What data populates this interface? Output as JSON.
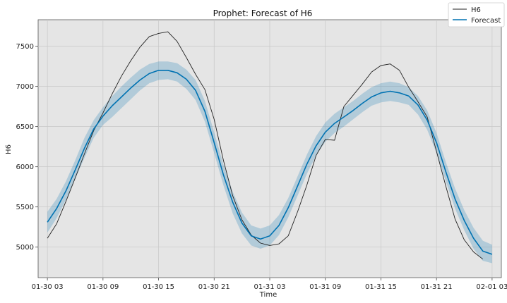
{
  "chart_data": {
    "type": "line",
    "title": "Prophet: Forecast of H6",
    "xlabel": "Time",
    "ylabel": "H6",
    "x_start": "2024-01-30 03:00",
    "x_step_hours": 1,
    "xlim": [
      "2024-01-30 02:00",
      "2024-02-01 04:00"
    ],
    "ylim": [
      4620,
      7830
    ],
    "x_ticks": [
      "01-30 03",
      "01-30 09",
      "01-30 15",
      "01-30 21",
      "01-31 03",
      "01-31 09",
      "01-31 15",
      "01-31 21",
      "02-01 03"
    ],
    "y_ticks": [
      5000,
      5500,
      6000,
      6500,
      7000,
      7500
    ],
    "grid": true,
    "legend_position": "top-right",
    "series": [
      {
        "name": "H6",
        "color": "#222222",
        "values": [
          5110,
          5290,
          5570,
          5860,
          6160,
          6450,
          6670,
          6910,
          7130,
          7320,
          7490,
          7620,
          7660,
          7680,
          7560,
          7360,
          7150,
          6960,
          6590,
          6080,
          5640,
          5340,
          5150,
          5050,
          5020,
          5040,
          5140,
          5440,
          5770,
          6140,
          6340,
          6330,
          6750,
          6890,
          7030,
          7180,
          7260,
          7280,
          7200,
          6990,
          6810,
          6620,
          6190,
          5760,
          5350,
          5090,
          4940,
          4850
        ]
      },
      {
        "name": "Forecast",
        "color": "#0072B2",
        "values": [
          5310,
          5480,
          5700,
          5960,
          6230,
          6470,
          6630,
          6760,
          6870,
          6980,
          7080,
          7160,
          7200,
          7200,
          7170,
          7090,
          6950,
          6690,
          6300,
          5900,
          5560,
          5300,
          5140,
          5100,
          5140,
          5270,
          5490,
          5760,
          6030,
          6260,
          6430,
          6540,
          6620,
          6700,
          6790,
          6870,
          6920,
          6940,
          6920,
          6880,
          6770,
          6580,
          6300,
          5940,
          5600,
          5330,
          5110,
          4950,
          4910
        ],
        "lower": [
          5180,
          5360,
          5590,
          5850,
          6110,
          6360,
          6520,
          6620,
          6730,
          6840,
          6950,
          7040,
          7080,
          7090,
          7060,
          6970,
          6830,
          6560,
          6170,
          5770,
          5420,
          5170,
          5020,
          4980,
          5020,
          5150,
          5370,
          5640,
          5910,
          6140,
          6310,
          6420,
          6500,
          6590,
          6680,
          6760,
          6800,
          6820,
          6800,
          6770,
          6650,
          6460,
          6170,
          5820,
          5480,
          5210,
          4980,
          4830,
          4800
        ],
        "upper": [
          5440,
          5600,
          5820,
          6080,
          6360,
          6580,
          6740,
          6880,
          7000,
          7110,
          7210,
          7280,
          7310,
          7310,
          7290,
          7210,
          7080,
          6820,
          6430,
          6030,
          5690,
          5430,
          5270,
          5230,
          5270,
          5400,
          5610,
          5880,
          6150,
          6380,
          6550,
          6660,
          6740,
          6820,
          6910,
          6990,
          7040,
          7060,
          7040,
          6990,
          6880,
          6700,
          6420,
          6060,
          5730,
          5460,
          5240,
          5080,
          5030
        ]
      }
    ]
  },
  "legend": {
    "items": [
      {
        "label": "H6",
        "color": "#222222"
      },
      {
        "label": "Forecast",
        "color": "#0072B2"
      }
    ]
  },
  "colors": {
    "plot_background": "#e5e5e5",
    "band_fill": "#0072B2",
    "grid": "#c8c8c8"
  }
}
